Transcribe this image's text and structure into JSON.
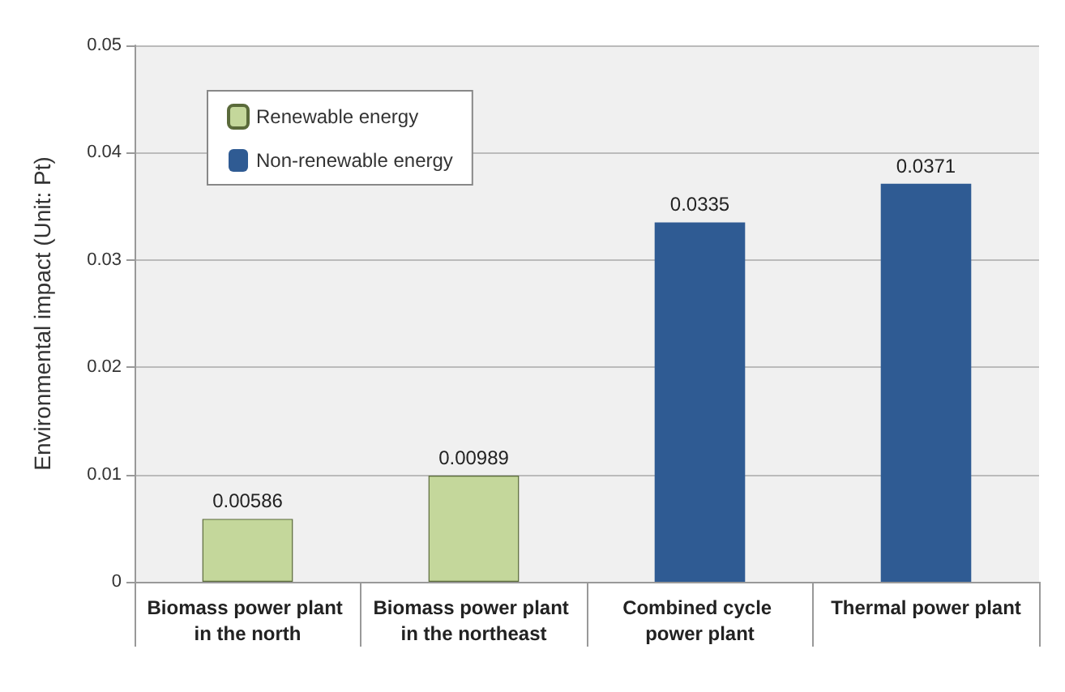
{
  "chart_data": {
    "type": "bar",
    "ylabel": "Environmental impact (Unit: Pt)",
    "categories": [
      "Biomass power plant in the north",
      "Biomass power plant in the northeast",
      "Combined cycle power plant",
      "Thermal power plant"
    ],
    "series": [
      {
        "name": "Renewable energy",
        "color": "#c4d79b",
        "values": [
          0.00586,
          0.00989,
          null,
          null
        ]
      },
      {
        "name": "Non-renewable energy",
        "color": "#2f5b93",
        "values": [
          null,
          null,
          0.0335,
          0.0371
        ]
      }
    ],
    "ylim": [
      0,
      0.05
    ],
    "yticks": [
      0,
      0.01,
      0.02,
      0.03,
      0.04,
      0.05
    ],
    "grid": "y",
    "legend": "top left",
    "data_labels": true
  }
}
